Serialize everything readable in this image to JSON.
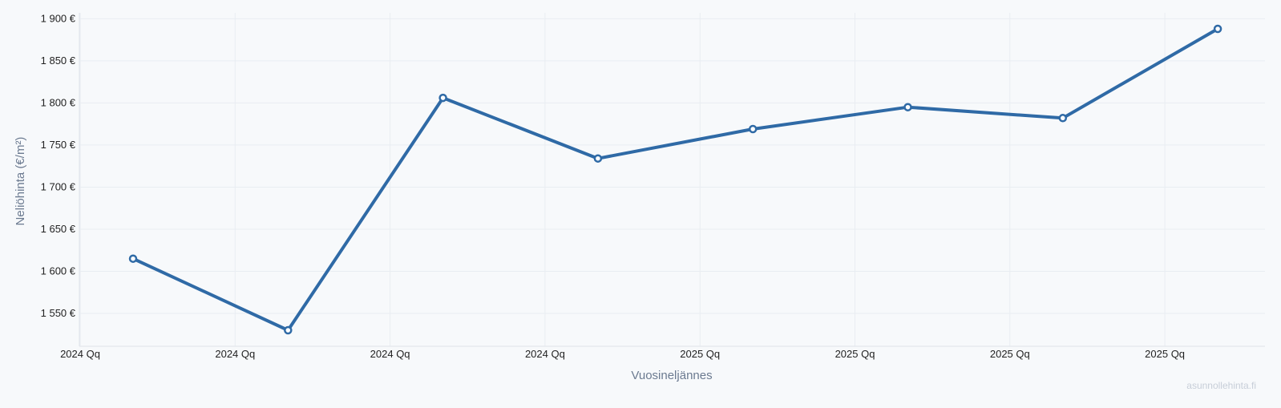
{
  "chart_data": {
    "type": "line",
    "title": "",
    "xlabel": "Vuosineljännes",
    "ylabel": "Neliöhinta (€/m²)",
    "x_tick_labels": [
      "2024 Qq",
      "2024 Qq",
      "2024 Qq",
      "2024 Qq",
      "2025 Qq",
      "2025 Qq",
      "2025 Qq",
      "2025 Qq"
    ],
    "y_ticks": [
      1550,
      1600,
      1650,
      1700,
      1750,
      1800,
      1850,
      1900
    ],
    "y_tick_labels": [
      "1 550 €",
      "1 600 €",
      "1 650 €",
      "1 700 €",
      "1 750 €",
      "1 800 €",
      "1 850 €",
      "1 900 €"
    ],
    "ylim": [
      1511,
      1907
    ],
    "grid": true,
    "series": [
      {
        "values": [
          1615,
          1530,
          1806,
          1734,
          1769,
          1795,
          1782,
          1888
        ]
      }
    ],
    "line_color": "#2f6aa6",
    "marker_fill": "#ffffff"
  },
  "watermark": "asunnollehinta.fi"
}
